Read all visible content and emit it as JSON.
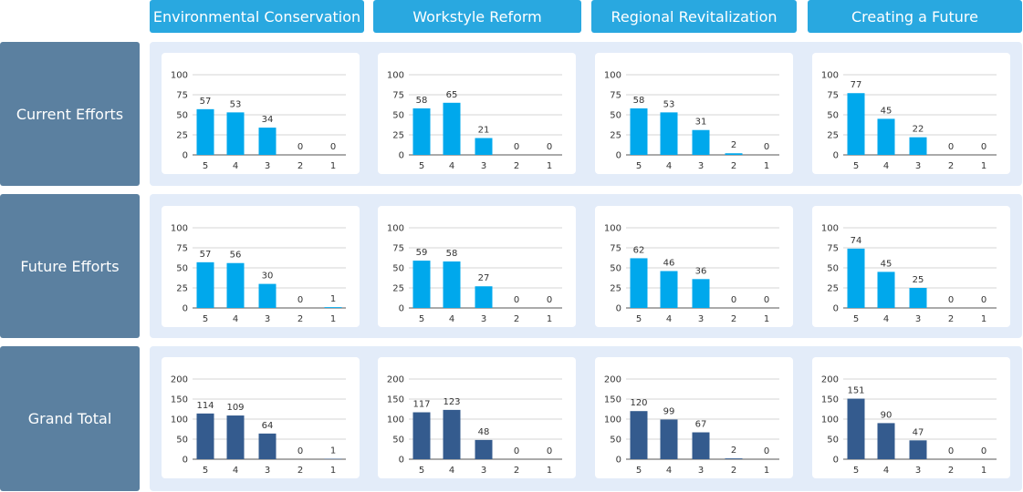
{
  "columns": [
    "Environmental Conservation",
    "Workstyle Reform",
    "Regional Revitalization",
    "Creating a Future"
  ],
  "rows": [
    "Current Efforts",
    "Future Efforts",
    "Grand Total"
  ],
  "colors": {
    "header": "#29a8e0",
    "row_header": "#5b80a0",
    "band": "#e3ecf9",
    "bar_light": "#00a8ec",
    "bar_dark": "#345b8e"
  },
  "chart_data": [
    {
      "type": "bar",
      "row": "Current Efforts",
      "column": "Environmental Conservation",
      "categories": [
        "5",
        "4",
        "3",
        "2",
        "1"
      ],
      "values": [
        57,
        53,
        34,
        0,
        0
      ],
      "ylim": [
        0,
        100
      ],
      "yticks": [
        0,
        25,
        50,
        75,
        100
      ],
      "color": "#00a8ec"
    },
    {
      "type": "bar",
      "row": "Current Efforts",
      "column": "Workstyle Reform",
      "categories": [
        "5",
        "4",
        "3",
        "2",
        "1"
      ],
      "values": [
        58,
        65,
        21,
        0,
        0
      ],
      "ylim": [
        0,
        100
      ],
      "yticks": [
        0,
        25,
        50,
        75,
        100
      ],
      "color": "#00a8ec"
    },
    {
      "type": "bar",
      "row": "Current Efforts",
      "column": "Regional Revitalization",
      "categories": [
        "5",
        "4",
        "3",
        "2",
        "1"
      ],
      "values": [
        58,
        53,
        31,
        2,
        0
      ],
      "ylim": [
        0,
        100
      ],
      "yticks": [
        0,
        25,
        50,
        75,
        100
      ],
      "color": "#00a8ec"
    },
    {
      "type": "bar",
      "row": "Current Efforts",
      "column": "Creating a Future",
      "categories": [
        "5",
        "4",
        "3",
        "2",
        "1"
      ],
      "values": [
        77,
        45,
        22,
        0,
        0
      ],
      "ylim": [
        0,
        100
      ],
      "yticks": [
        0,
        25,
        50,
        75,
        100
      ],
      "color": "#00a8ec"
    },
    {
      "type": "bar",
      "row": "Future Efforts",
      "column": "Environmental Conservation",
      "categories": [
        "5",
        "4",
        "3",
        "2",
        "1"
      ],
      "values": [
        57,
        56,
        30,
        0,
        1
      ],
      "ylim": [
        0,
        100
      ],
      "yticks": [
        0,
        25,
        50,
        75,
        100
      ],
      "color": "#00a8ec"
    },
    {
      "type": "bar",
      "row": "Future Efforts",
      "column": "Workstyle Reform",
      "categories": [
        "5",
        "4",
        "3",
        "2",
        "1"
      ],
      "values": [
        59,
        58,
        27,
        0,
        0
      ],
      "ylim": [
        0,
        100
      ],
      "yticks": [
        0,
        25,
        50,
        75,
        100
      ],
      "color": "#00a8ec"
    },
    {
      "type": "bar",
      "row": "Future Efforts",
      "column": "Regional Revitalization",
      "categories": [
        "5",
        "4",
        "3",
        "2",
        "1"
      ],
      "values": [
        62,
        46,
        36,
        0,
        0
      ],
      "ylim": [
        0,
        100
      ],
      "yticks": [
        0,
        25,
        50,
        75,
        100
      ],
      "color": "#00a8ec"
    },
    {
      "type": "bar",
      "row": "Future Efforts",
      "column": "Creating a Future",
      "categories": [
        "5",
        "4",
        "3",
        "2",
        "1"
      ],
      "values": [
        74,
        45,
        25,
        0,
        0
      ],
      "ylim": [
        0,
        100
      ],
      "yticks": [
        0,
        25,
        50,
        75,
        100
      ],
      "color": "#00a8ec"
    },
    {
      "type": "bar",
      "row": "Grand Total",
      "column": "Environmental Conservation",
      "categories": [
        "5",
        "4",
        "3",
        "2",
        "1"
      ],
      "values": [
        114,
        109,
        64,
        0,
        1
      ],
      "ylim": [
        0,
        200
      ],
      "yticks": [
        0,
        50,
        100,
        150,
        200
      ],
      "color": "#345b8e"
    },
    {
      "type": "bar",
      "row": "Grand Total",
      "column": "Workstyle Reform",
      "categories": [
        "5",
        "4",
        "3",
        "2",
        "1"
      ],
      "values": [
        117,
        123,
        48,
        0,
        0
      ],
      "ylim": [
        0,
        200
      ],
      "yticks": [
        0,
        50,
        100,
        150,
        200
      ],
      "color": "#345b8e"
    },
    {
      "type": "bar",
      "row": "Grand Total",
      "column": "Regional Revitalization",
      "categories": [
        "5",
        "4",
        "3",
        "2",
        "1"
      ],
      "values": [
        120,
        99,
        67,
        2,
        0
      ],
      "ylim": [
        0,
        200
      ],
      "yticks": [
        0,
        50,
        100,
        150,
        200
      ],
      "color": "#345b8e"
    },
    {
      "type": "bar",
      "row": "Grand Total",
      "column": "Creating a Future",
      "categories": [
        "5",
        "4",
        "3",
        "2",
        "1"
      ],
      "values": [
        151,
        90,
        47,
        0,
        0
      ],
      "ylim": [
        0,
        200
      ],
      "yticks": [
        0,
        50,
        100,
        150,
        200
      ],
      "color": "#345b8e"
    }
  ]
}
